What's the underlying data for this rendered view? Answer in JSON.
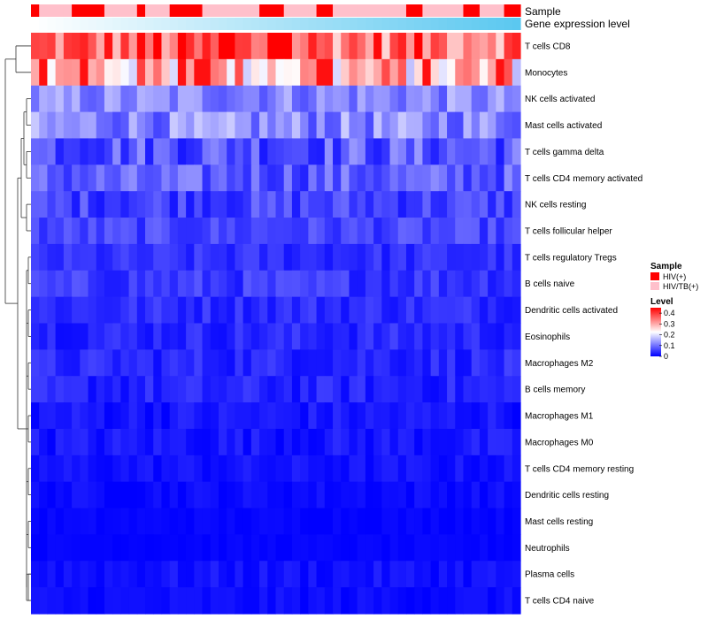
{
  "chart_data": {
    "type": "heatmap",
    "title": "",
    "rows": [
      "T cells CD8",
      "Monocytes",
      "NK cells activated",
      "Mast cells activated",
      "T cells gamma delta",
      "T cells CD4 memory activated",
      "NK cells resting",
      "T cells follicular helper",
      "T cells regulatory  Tregs",
      "B cells naive",
      "Dendritic cells activated",
      "Eosinophils",
      "Macrophages M2",
      "B cells memory",
      "Macrophages M1",
      "Macrophages M0",
      "T cells CD4 memory resting",
      "Dendritic cells resting",
      "Mast cells resting",
      "Neutrophils",
      "Plasma cells",
      "T cells CD4 naive"
    ],
    "column_count": 60,
    "annotations": {
      "sample_track_label": "Sample",
      "gene_track_label": "Gene expression level",
      "sample_groups": [
        "HIV(+)",
        "HIV/TB(+)"
      ],
      "sample_colors": {
        "HIV(+)": "#ff0000",
        "HIV/TB(+)": "#ffc0cb"
      },
      "sample_pattern": "HHLLLLLLLLHHHHHHHLLLLLLLLLLHHLLLLLLHHHHHHHLLLLLLLLLLLLLLLHHHHHHLLLLLLLLHHHHHLLLLLLLLLLLLLLLLLLHHHHHHLLLLLLLLLHHHHHLLLLLLHHHHH",
      "gene_gradient": [
        "#ffffff",
        "#5bc8f0"
      ]
    },
    "legend": {
      "sample_title": "Sample",
      "level_title": "Level",
      "level_ticks": [
        "0.4",
        "0.3",
        "0.2",
        "0.1",
        "0"
      ],
      "color_scale": {
        "min": 0,
        "max": 0.45,
        "colors": [
          "#0000ff",
          "#ffffff",
          "#ff0000"
        ]
      }
    },
    "row_means": [
      0.36,
      0.28,
      0.12,
      0.12,
      0.08,
      0.08,
      0.06,
      0.06,
      0.04,
      0.05,
      0.04,
      0.035,
      0.035,
      0.03,
      0.02,
      0.02,
      0.015,
      0.01,
      0.005,
      0.004,
      0.015,
      0.01
    ],
    "row_spread": [
      0.1,
      0.12,
      0.05,
      0.06,
      0.06,
      0.05,
      0.04,
      0.03,
      0.025,
      0.03,
      0.025,
      0.025,
      0.025,
      0.025,
      0.02,
      0.02,
      0.015,
      0.012,
      0.006,
      0.005,
      0.015,
      0.012
    ],
    "legend_position": "right"
  }
}
